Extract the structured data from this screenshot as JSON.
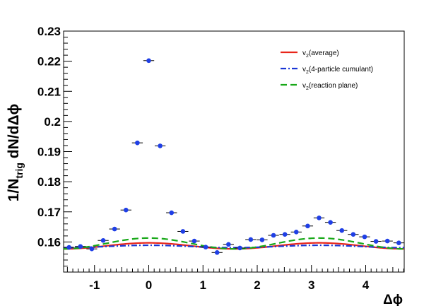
{
  "chart_data": {
    "type": "scatter",
    "title": "",
    "xlabel": "Δϕ",
    "ylabel_main": "1/N",
    "ylabel_sub": "trig",
    "ylabel_rest": " dN/dΔϕ",
    "xlim": [
      -1.57,
      4.71
    ],
    "ylim": [
      0.15,
      0.23
    ],
    "x_ticks": [
      "-1",
      "0",
      "1",
      "2",
      "3",
      "4"
    ],
    "y_ticks": [
      "0.16",
      "0.17",
      "0.18",
      "0.19",
      "0.2",
      "0.21",
      "0.22",
      "0.23"
    ],
    "grid": false,
    "legend_position": "top-right",
    "points": {
      "name": "data",
      "color": "#1f3fe6",
      "x": [
        -1.47,
        -1.26,
        -1.05,
        -0.84,
        -0.63,
        -0.42,
        -0.21,
        0.0,
        0.21,
        0.42,
        0.63,
        0.84,
        1.05,
        1.26,
        1.47,
        1.68,
        1.88,
        2.09,
        2.3,
        2.51,
        2.72,
        2.93,
        3.14,
        3.35,
        3.56,
        3.77,
        3.98,
        4.19,
        4.4,
        4.61
      ],
      "y": [
        0.1582,
        0.1585,
        0.1577,
        0.1605,
        0.1643,
        0.1706,
        0.1929,
        0.2202,
        0.1919,
        0.1697,
        0.1635,
        0.1603,
        0.1583,
        0.1565,
        0.1592,
        0.158,
        0.1608,
        0.1607,
        0.1622,
        0.1625,
        0.1633,
        0.1653,
        0.168,
        0.1665,
        0.1638,
        0.1625,
        0.1617,
        0.1602,
        0.1603,
        0.1597
      ],
      "xerr": 0.1
    },
    "series": [
      {
        "name": "v2(average)",
        "legend_main": "v",
        "legend_sub": "2",
        "legend_rest": "(average)",
        "color": "#e8251a",
        "style": "solid",
        "baseline": 0.1587,
        "amplitude": 0.001
      },
      {
        "name": "v2(4-particle cumulant)",
        "legend_main": "v",
        "legend_sub": "2",
        "legend_rest": "(4-particle cumulant)",
        "color": "#1a36d6",
        "style": "dashdot",
        "baseline": 0.1585,
        "amplitude": 0.0004
      },
      {
        "name": "v2(reaction plane)",
        "legend_main": "v",
        "legend_sub": "2",
        "legend_rest": "(reaction plane)",
        "color": "#18a818",
        "style": "dashed",
        "baseline": 0.1595,
        "amplitude": 0.0018
      }
    ]
  }
}
